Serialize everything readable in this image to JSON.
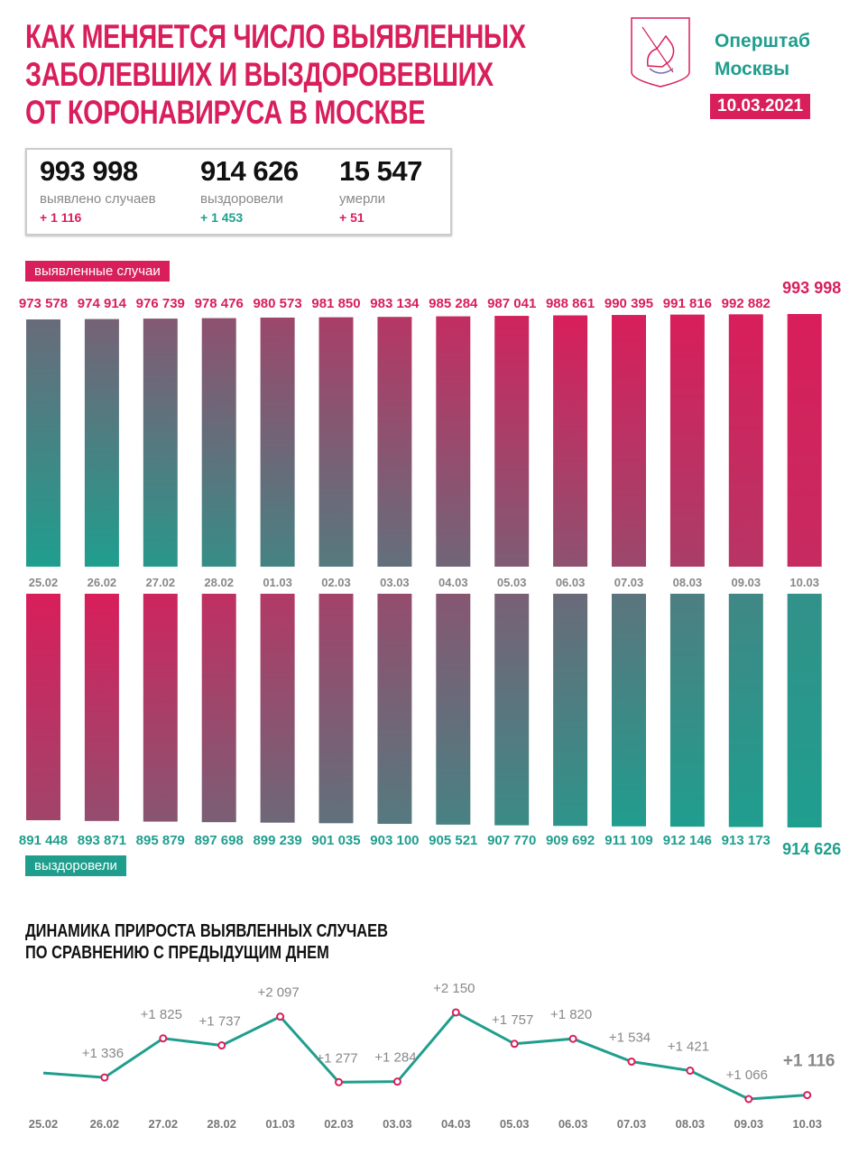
{
  "header": {
    "title_lines": [
      "КАК МЕНЯЕТСЯ ЧИСЛО ВЫЯВЛЕННЫХ",
      "ЗАБОЛЕВШИХ И ВЫЗДОРОВЕВШИХ",
      "ОТ КОРОНАВИРУСА В МОСКВЕ"
    ],
    "brand_lines": [
      "Оперштаб",
      "Москвы"
    ],
    "date": "10.03.2021"
  },
  "stats": [
    {
      "value": "993 998",
      "label": "выявлено случаев",
      "delta": "+ 1 116",
      "color": "#d81e5b"
    },
    {
      "value": "914 626",
      "label": "выздоровели",
      "delta": "+ 1 453",
      "color": "#1f9e8e"
    },
    {
      "value": "15 547",
      "label": "умерли",
      "delta": "+ 51",
      "color": "#d81e5b"
    }
  ],
  "colors": {
    "pink": "#d81e5b",
    "teal": "#1f9e8e"
  },
  "chart_data": [
    {
      "type": "bar",
      "title": "выявленные случаи",
      "categories": [
        "25.02",
        "26.02",
        "27.02",
        "28.02",
        "01.03",
        "02.03",
        "03.03",
        "04.03",
        "05.03",
        "06.03",
        "07.03",
        "08.03",
        "09.03",
        "10.03"
      ],
      "values": [
        973578,
        974914,
        976739,
        978476,
        980573,
        981850,
        983134,
        985284,
        987041,
        988861,
        990395,
        991816,
        992882,
        993998
      ],
      "labels": [
        "973 578",
        "974 914",
        "976 739",
        "978 476",
        "980 573",
        "981 850",
        "983 134",
        "985 284",
        "987 041",
        "988 861",
        "990 395",
        "991 816",
        "992 882",
        "993 998"
      ]
    },
    {
      "type": "bar",
      "title": "выздоровели",
      "categories": [
        "25.02",
        "26.02",
        "27.02",
        "28.02",
        "01.03",
        "02.03",
        "03.03",
        "04.03",
        "05.03",
        "06.03",
        "07.03",
        "08.03",
        "09.03",
        "10.03"
      ],
      "values": [
        891448,
        893871,
        895879,
        897698,
        899239,
        901035,
        903100,
        905521,
        907770,
        909692,
        911109,
        912146,
        913173,
        914626
      ],
      "labels": [
        "891 448",
        "893 871",
        "895 879",
        "897 698",
        "899 239",
        "901 035",
        "903 100",
        "905 521",
        "907 770",
        "909 692",
        "911 109",
        "912 146",
        "913 173",
        "914 626"
      ]
    },
    {
      "type": "line",
      "title_lines": [
        "ДИНАМИКА ПРИРОСТА ВЫЯВЛЕННЫХ СЛУЧАЕВ",
        "ПО СРАВНЕНИЮ С ПРЕДЫДУЩИМ ДНЕМ"
      ],
      "categories": [
        "25.02",
        "26.02",
        "27.02",
        "28.02",
        "01.03",
        "02.03",
        "03.03",
        "04.03",
        "05.03",
        "06.03",
        "07.03",
        "08.03",
        "09.03",
        "10.03"
      ],
      "values": [
        1392,
        1336,
        1825,
        1737,
        2097,
        1277,
        1284,
        2150,
        1757,
        1820,
        1534,
        1421,
        1066,
        1116
      ],
      "labels": [
        null,
        "+1 336",
        "+1 825",
        "+1 737",
        "+2 097",
        "+1 277",
        "+1 284",
        "+2 150",
        "+1 757",
        "+1 820",
        "+1 534",
        "+1 421",
        "+1 066",
        "+1 116"
      ]
    }
  ]
}
